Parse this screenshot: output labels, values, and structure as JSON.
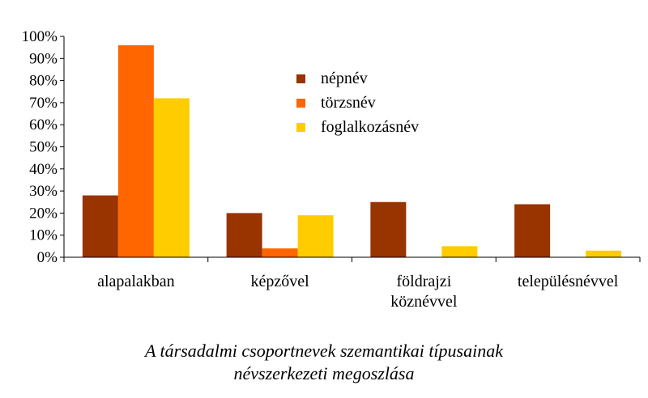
{
  "chart_data": {
    "type": "bar",
    "categories": [
      [
        "alapalakban"
      ],
      [
        "képzővel"
      ],
      [
        "földrajzi",
        "köznévvel"
      ],
      [
        "településnévvel"
      ]
    ],
    "series": [
      {
        "name": "népnév",
        "color": "#993300",
        "values": [
          28,
          20,
          25,
          24
        ]
      },
      {
        "name": "törzsnév",
        "color": "#FF6600",
        "values": [
          96,
          4,
          0,
          0
        ]
      },
      {
        "name": "foglalkozásnév",
        "color": "#FFCC00",
        "values": [
          72,
          19,
          5,
          3
        ]
      }
    ],
    "ylim": [
      0,
      100
    ],
    "yticks": [
      "0%",
      "10%",
      "20%",
      "30%",
      "40%",
      "50%",
      "60%",
      "70%",
      "80%",
      "90%",
      "100%"
    ],
    "grid": false,
    "legend_position": "upper-center"
  },
  "caption": {
    "line1": "A társadalmi csoportnevek szemantikai típusainak",
    "line2": "névszerkezeti megoszlása"
  }
}
